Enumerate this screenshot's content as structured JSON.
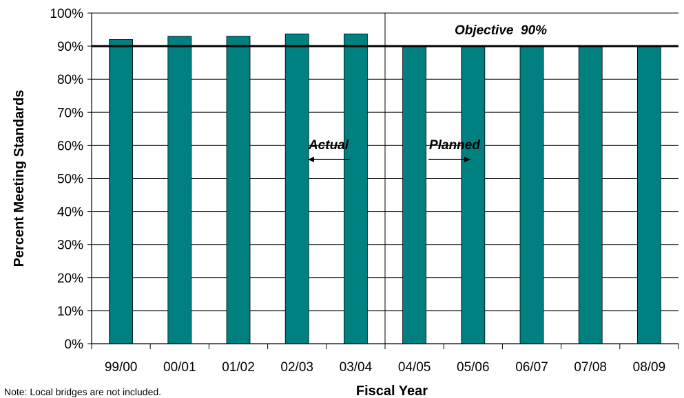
{
  "chart_data": {
    "type": "bar",
    "categories": [
      "99/00",
      "00/01",
      "01/02",
      "02/03",
      "03/04",
      "04/05",
      "05/06",
      "06/07",
      "07/08",
      "08/09"
    ],
    "values": [
      92,
      93,
      93,
      93.7,
      93.7,
      90,
      90,
      90,
      90,
      90
    ],
    "xlabel": "Fiscal Year",
    "ylabel": "Percent Meeting Standards",
    "ylim": [
      0,
      100
    ],
    "ytick_labels": [
      "0%",
      "10%",
      "20%",
      "30%",
      "40%",
      "50%",
      "60%",
      "70%",
      "80%",
      "90%",
      "100%"
    ],
    "grid": true,
    "bar_color": "#008080",
    "objective": {
      "value": 90,
      "label": "Objective  90%"
    },
    "split_after_category": "03/04",
    "annotations": {
      "actual": "Actual",
      "planned": "Planned"
    },
    "note": "Note: Local bridges are not included."
  }
}
